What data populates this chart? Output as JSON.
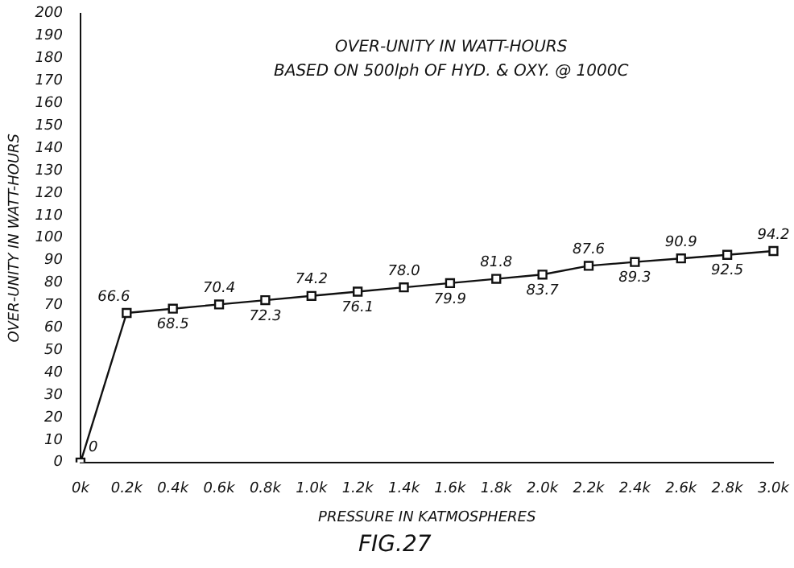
{
  "chart_data": {
    "type": "line",
    "title": "OVER-UNITY IN WATT-HOURS",
    "subtitle": "BASED ON 500lph OF HYD. & OXY. @ 1000C",
    "xlabel": "PRESSURE IN KATMOSPHERES",
    "ylabel": "OVER-UNITY IN WATT-HOURS",
    "categories": [
      "0k",
      "0.2k",
      "0.4k",
      "0.6k",
      "0.8k",
      "1.0k",
      "1.2k",
      "1.4k",
      "1.6k",
      "1.8k",
      "2.0k",
      "2.2k",
      "2.4k",
      "2.6k",
      "2.8k",
      "3.0k"
    ],
    "values": [
      0,
      66.6,
      68.5,
      70.4,
      72.3,
      74.2,
      76.1,
      78.0,
      79.9,
      81.8,
      83.7,
      87.6,
      89.3,
      90.9,
      92.5,
      94.2
    ],
    "value_labels": [
      "0",
      "66.6",
      "68.5",
      "70.4",
      "72.3",
      "74.2",
      "76.1",
      "78.0",
      "79.9",
      "81.8",
      "83.7",
      "87.6",
      "89.3",
      "90.9",
      "92.5",
      "94.2"
    ],
    "color": "#111111",
    "ylim": [
      0,
      200
    ],
    "yticks": [
      0,
      10,
      20,
      30,
      40,
      50,
      60,
      70,
      80,
      90,
      100,
      110,
      120,
      130,
      140,
      150,
      160,
      170,
      180,
      190,
      200
    ],
    "grid": false,
    "legend": false,
    "marker": "square",
    "line_style": "solid",
    "annotations": [
      "FIG.27"
    ]
  }
}
